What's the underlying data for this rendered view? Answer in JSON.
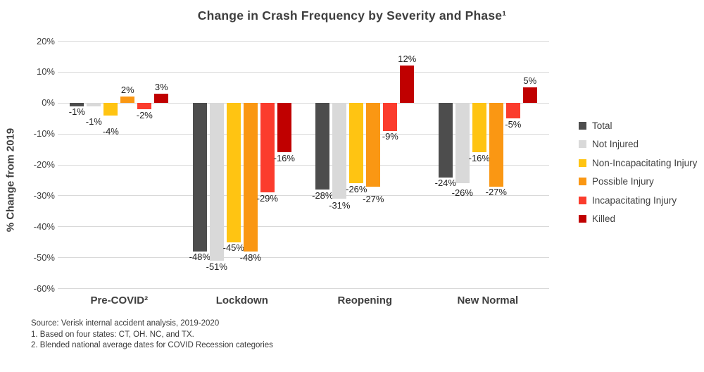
{
  "title": "Change in Crash Frequency by Severity and Phase¹",
  "y_axis_title": "% Change from 2019",
  "chart_data": {
    "type": "bar",
    "categories": [
      "Pre-COVID²",
      "Lockdown",
      "Reopening",
      "New Normal"
    ],
    "series": [
      {
        "name": "Total",
        "color": "#4d4d4d",
        "values": [
          -1,
          -48,
          -28,
          -24
        ]
      },
      {
        "name": "Not Injured",
        "color": "#d9d9d9",
        "values": [
          -1,
          -51,
          -31,
          -26
        ]
      },
      {
        "name": "Non-Incapacitating Injury",
        "color": "#ffc412",
        "values": [
          -4,
          -45,
          -26,
          -16
        ]
      },
      {
        "name": "Possible Injury",
        "color": "#fa9713",
        "values": [
          2,
          -48,
          -27,
          -27
        ]
      },
      {
        "name": "Incapacitating Injury",
        "color": "#fb3c2d",
        "values": [
          -2,
          -29,
          -9,
          -5
        ]
      },
      {
        "name": "Killed",
        "color": "#c00000",
        "values": [
          3,
          -16,
          12,
          5
        ]
      }
    ],
    "title": "Change in Crash Frequency by Severity and Phase¹",
    "xlabel": "",
    "ylabel": "% Change from 2019",
    "ylim": [
      -60,
      20
    ],
    "ytick_step": 10,
    "ytick_labels": [
      "20%",
      "10%",
      "0%",
      "-10%",
      "-20%",
      "-30%",
      "-40%",
      "-50%",
      "-60%"
    ],
    "data_label_format": "{value}%",
    "grid": true,
    "legend_position": "right"
  },
  "footer": {
    "lines": [
      "Source: Verisk internal accident analysis, 2019-2020",
      "1. Based on four states: CT, OH. NC, and TX.",
      "2. Blended national average dates for COVID Recession categories"
    ]
  }
}
